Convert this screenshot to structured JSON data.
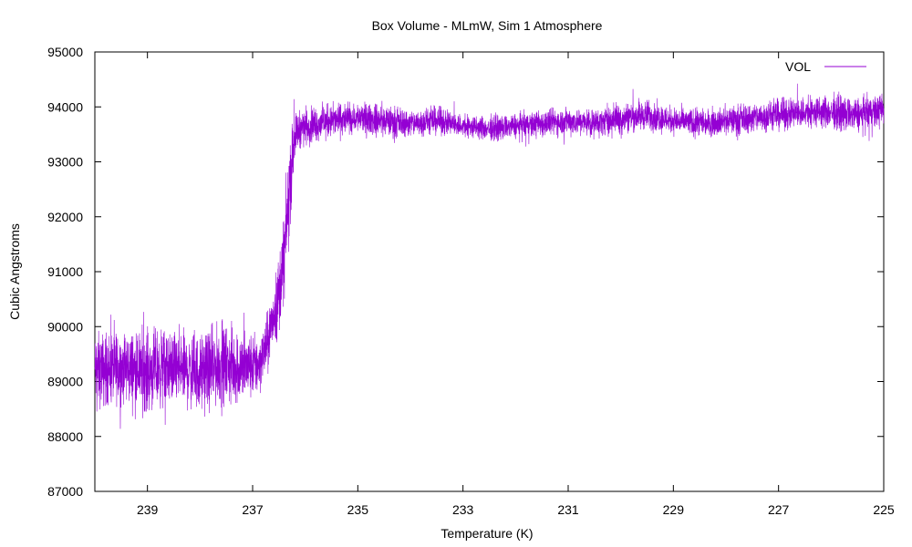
{
  "chart_data": {
    "type": "line",
    "title": "Box Volume - MLmW, Sim 1 Atmosphere",
    "xlabel": "Temperature (K)",
    "ylabel": "Cubic Angstroms",
    "xlim": [
      240.0,
      225.0
    ],
    "ylim": [
      87000,
      95000
    ],
    "x_ticks": [
      239,
      237,
      235,
      233,
      231,
      229,
      227,
      225
    ],
    "y_ticks": [
      87000,
      88000,
      89000,
      90000,
      91000,
      92000,
      93000,
      94000,
      95000
    ],
    "legend": {
      "position": "top-right"
    },
    "series": [
      {
        "name": "VOL",
        "color": "#9400d3",
        "x": [
          240.0,
          239.5,
          239.0,
          238.5,
          238.0,
          237.6,
          237.2,
          236.9,
          236.75,
          236.6,
          236.5,
          236.4,
          236.3,
          236.2,
          236.1,
          236.0,
          235.5,
          235.0,
          234.5,
          234.0,
          233.5,
          233.0,
          232.5,
          232.0,
          231.5,
          231.0,
          230.5,
          230.0,
          229.5,
          229.0,
          228.5,
          228.0,
          227.5,
          227.0,
          226.5,
          226.0,
          225.5,
          225.0
        ],
        "y": [
          89200,
          89250,
          89200,
          89250,
          89150,
          89300,
          89250,
          89300,
          89600,
          90200,
          90600,
          91300,
          92500,
          93500,
          93600,
          93650,
          93750,
          93800,
          93750,
          93700,
          93750,
          93650,
          93600,
          93650,
          93700,
          93750,
          93700,
          93800,
          93850,
          93750,
          93700,
          93750,
          93800,
          93850,
          93900,
          93900,
          93850,
          93950
        ],
        "noise": [
          1200,
          1200,
          1300,
          1200,
          1200,
          1300,
          1200,
          1000,
          900,
          1000,
          1300,
          1400,
          1600,
          700,
          600,
          600,
          550,
          500,
          500,
          450,
          450,
          400,
          400,
          400,
          450,
          450,
          450,
          500,
          500,
          450,
          450,
          450,
          500,
          500,
          550,
          550,
          550,
          550
        ]
      }
    ]
  }
}
